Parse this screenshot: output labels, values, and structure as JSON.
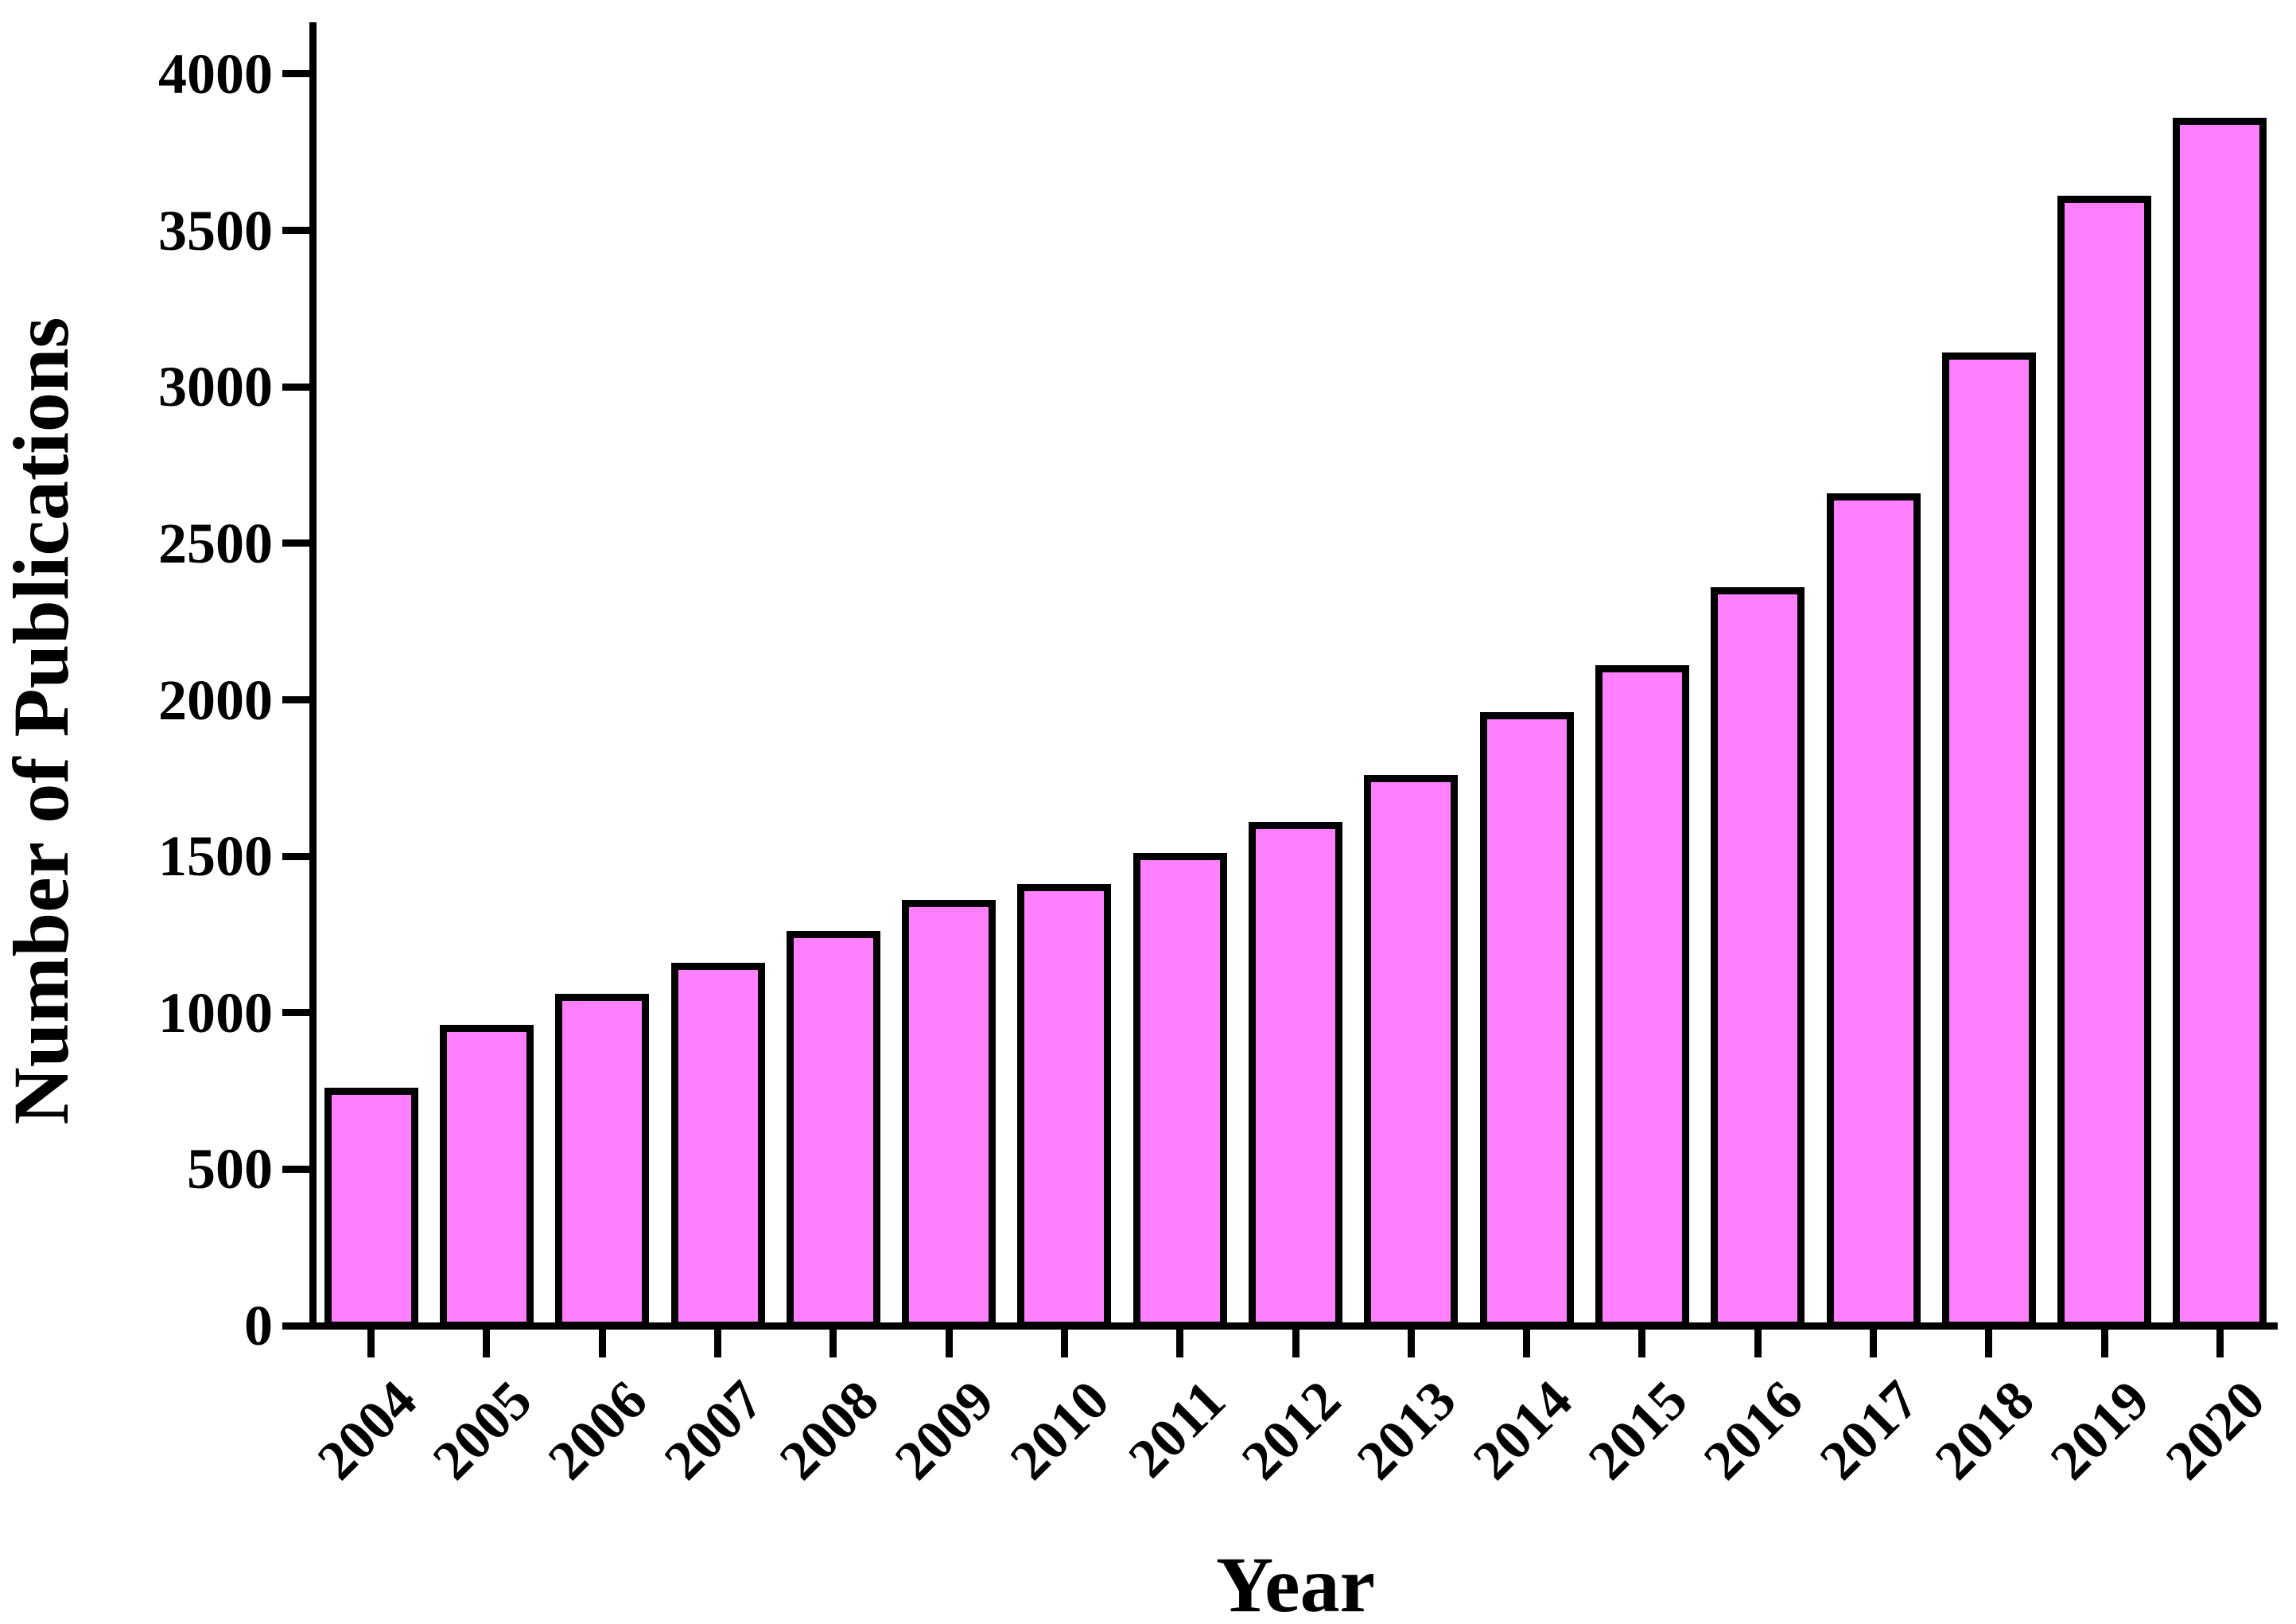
{
  "chart_data": {
    "type": "bar",
    "title": "",
    "xlabel": "Year",
    "ylabel": "Number of Publications",
    "categories": [
      "2004",
      "2005",
      "2006",
      "2007",
      "2008",
      "2009",
      "2010",
      "2011",
      "2012",
      "2013",
      "2014",
      "2015",
      "2016",
      "2017",
      "2018",
      "2019",
      "2020"
    ],
    "values": [
      750,
      950,
      1050,
      1150,
      1250,
      1350,
      1400,
      1500,
      1600,
      1750,
      1950,
      2100,
      2350,
      2650,
      3100,
      3600,
      3850
    ],
    "y_ticks": [
      0,
      500,
      1000,
      1500,
      2000,
      2500,
      3000,
      3500,
      4000
    ],
    "ylim": [
      0,
      4160
    ],
    "grid": false,
    "legend": "none",
    "bar_fill": "#FF80FF",
    "bar_border": "#000000",
    "axis_color": "#000000"
  }
}
